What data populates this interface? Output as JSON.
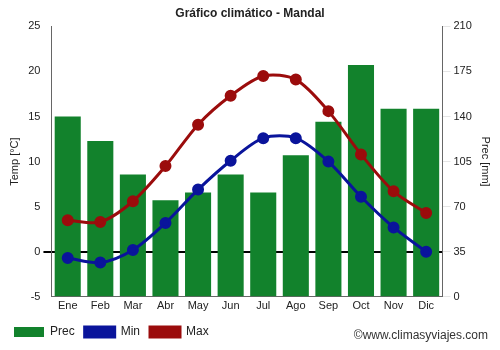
{
  "chart_data": {
    "type": "bar",
    "title": "Gráfico climático - Mandal",
    "annotations": [
      "©www.climasyviajes.com"
    ],
    "categories": [
      "Ene",
      "Feb",
      "Mar",
      "Abr",
      "May",
      "Jun",
      "Jul",
      "Ago",
      "Sep",
      "Oct",
      "Nov",
      "Dic"
    ],
    "y_label": "Temp [°C]",
    "y2_label": "Prec [mm]",
    "series": [
      {
        "name": "Prec",
        "type": "bar",
        "axis": "y2",
        "color": "#12822c",
        "values": [
          140,
          121,
          95,
          75,
          81,
          95,
          81,
          110,
          136,
          180,
          146,
          146
        ]
      },
      {
        "name": "Min",
        "type": "line",
        "color": "#0a149b",
        "marker": "circle",
        "values": [
          -0.7,
          -1.2,
          0.2,
          3.2,
          6.9,
          10.1,
          12.6,
          12.6,
          10.0,
          6.1,
          2.7,
          0.0
        ]
      },
      {
        "name": "Max",
        "type": "line",
        "color": "#9b0c0c",
        "marker": "circle",
        "values": [
          3.5,
          3.3,
          5.6,
          9.5,
          14.1,
          17.3,
          19.5,
          19.1,
          15.6,
          10.8,
          6.7,
          4.3
        ]
      }
    ],
    "ylim": [
      -5,
      25
    ],
    "yticks": [
      -5,
      0,
      5,
      10,
      15,
      20,
      25
    ],
    "y2lim": [
      0,
      210
    ],
    "y2ticks": [
      0,
      35,
      70,
      105,
      140,
      175,
      210
    ],
    "grid": false,
    "legend": "bottom"
  }
}
